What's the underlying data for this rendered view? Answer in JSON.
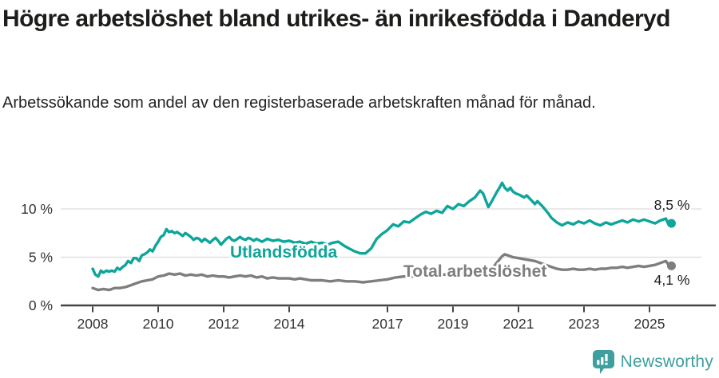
{
  "header": {
    "title": "Högre arbetslöshet bland utrikes- än inrikesfödda i Danderyd",
    "subtitle": "Arbetssökande som andel av den registerbaserade arbetskraften månad för månad."
  },
  "branding": {
    "logo_text": "Newsworthy",
    "color": "#3d9f9e"
  },
  "colors": {
    "foreign_born_line": "#0ea59b",
    "total_line": "#7e7e7e",
    "gridline": "#dcdcdc",
    "axis": "#454545",
    "axis_text": "#333333",
    "end_label_text": "#1d1d1d"
  },
  "chart_data": {
    "type": "line",
    "title": "Högre arbetslöshet bland utrikes- än inrikesfödda i Danderyd",
    "subtitle": "Arbetssökande som andel av den registerbaserade arbetskraften månad för månad.",
    "unit": "%",
    "grid": "horizontal",
    "legend_position": "inline-labels",
    "xlim": [
      2007.0,
      2026.6
    ],
    "ylim": [
      0,
      13.8
    ],
    "x_ticks": [
      2008,
      2010,
      2012,
      2014,
      2017,
      2019,
      2021,
      2023,
      2025
    ],
    "y_ticks": [
      {
        "value": 0,
        "label": "0 %"
      },
      {
        "value": 5,
        "label": "5 %"
      },
      {
        "value": 10,
        "label": "10 %"
      }
    ],
    "series": [
      {
        "name": "Utlandsfödda",
        "color": "#0ea59b",
        "end_label": "8,5 %",
        "end_value": 8.5,
        "points": [
          [
            2008.0,
            3.8
          ],
          [
            2008.08,
            3.2
          ],
          [
            2008.17,
            3.0
          ],
          [
            2008.25,
            3.6
          ],
          [
            2008.33,
            3.4
          ],
          [
            2008.42,
            3.6
          ],
          [
            2008.5,
            3.5
          ],
          [
            2008.58,
            3.6
          ],
          [
            2008.67,
            3.5
          ],
          [
            2008.75,
            3.9
          ],
          [
            2008.83,
            3.7
          ],
          [
            2008.92,
            4.0
          ],
          [
            2009.0,
            4.2
          ],
          [
            2009.08,
            4.6
          ],
          [
            2009.17,
            4.4
          ],
          [
            2009.25,
            4.9
          ],
          [
            2009.33,
            4.9
          ],
          [
            2009.42,
            4.6
          ],
          [
            2009.5,
            5.2
          ],
          [
            2009.58,
            5.3
          ],
          [
            2009.67,
            5.5
          ],
          [
            2009.75,
            5.8
          ],
          [
            2009.83,
            5.6
          ],
          [
            2009.92,
            6.2
          ],
          [
            2010.0,
            6.6
          ],
          [
            2010.08,
            7.1
          ],
          [
            2010.17,
            7.3
          ],
          [
            2010.25,
            7.9
          ],
          [
            2010.33,
            7.6
          ],
          [
            2010.42,
            7.7
          ],
          [
            2010.5,
            7.5
          ],
          [
            2010.58,
            7.6
          ],
          [
            2010.67,
            7.4
          ],
          [
            2010.75,
            7.2
          ],
          [
            2010.83,
            7.5
          ],
          [
            2010.92,
            7.3
          ],
          [
            2011.0,
            7.1
          ],
          [
            2011.08,
            6.8
          ],
          [
            2011.17,
            7.0
          ],
          [
            2011.25,
            6.9
          ],
          [
            2011.33,
            6.6
          ],
          [
            2011.42,
            6.9
          ],
          [
            2011.5,
            6.7
          ],
          [
            2011.58,
            6.5
          ],
          [
            2011.67,
            6.8
          ],
          [
            2011.75,
            7.0
          ],
          [
            2011.83,
            6.7
          ],
          [
            2011.92,
            6.3
          ],
          [
            2012.0,
            6.6
          ],
          [
            2012.08,
            6.9
          ],
          [
            2012.17,
            7.1
          ],
          [
            2012.25,
            6.8
          ],
          [
            2012.33,
            6.7
          ],
          [
            2012.42,
            6.9
          ],
          [
            2012.5,
            7.1
          ],
          [
            2012.58,
            6.9
          ],
          [
            2012.67,
            6.8
          ],
          [
            2012.75,
            7.0
          ],
          [
            2012.83,
            6.9
          ],
          [
            2012.92,
            6.7
          ],
          [
            2013.0,
            6.9
          ],
          [
            2013.17,
            6.6
          ],
          [
            2013.33,
            6.9
          ],
          [
            2013.5,
            6.7
          ],
          [
            2013.67,
            6.8
          ],
          [
            2013.83,
            6.6
          ],
          [
            2014.0,
            6.7
          ],
          [
            2014.17,
            6.5
          ],
          [
            2014.33,
            6.6
          ],
          [
            2014.5,
            6.4
          ],
          [
            2014.67,
            6.6
          ],
          [
            2014.83,
            6.4
          ],
          [
            2015.0,
            6.5
          ],
          [
            2015.17,
            6.3
          ],
          [
            2015.33,
            6.5
          ],
          [
            2015.5,
            6.6
          ],
          [
            2015.67,
            6.2
          ],
          [
            2015.83,
            5.9
          ],
          [
            2016.0,
            5.6
          ],
          [
            2016.17,
            5.4
          ],
          [
            2016.33,
            5.4
          ],
          [
            2016.5,
            5.9
          ],
          [
            2016.67,
            6.9
          ],
          [
            2016.83,
            7.4
          ],
          [
            2017.0,
            7.8
          ],
          [
            2017.17,
            8.4
          ],
          [
            2017.33,
            8.2
          ],
          [
            2017.5,
            8.7
          ],
          [
            2017.67,
            8.6
          ],
          [
            2017.83,
            9.0
          ],
          [
            2018.0,
            9.4
          ],
          [
            2018.17,
            9.7
          ],
          [
            2018.33,
            9.5
          ],
          [
            2018.5,
            9.8
          ],
          [
            2018.67,
            9.6
          ],
          [
            2018.83,
            10.3
          ],
          [
            2019.0,
            10.0
          ],
          [
            2019.17,
            10.5
          ],
          [
            2019.33,
            10.3
          ],
          [
            2019.5,
            10.8
          ],
          [
            2019.67,
            11.2
          ],
          [
            2019.83,
            11.9
          ],
          [
            2019.92,
            11.6
          ],
          [
            2020.0,
            10.9
          ],
          [
            2020.08,
            10.2
          ],
          [
            2020.17,
            10.7
          ],
          [
            2020.33,
            11.7
          ],
          [
            2020.42,
            12.2
          ],
          [
            2020.5,
            12.7
          ],
          [
            2020.58,
            12.2
          ],
          [
            2020.67,
            11.9
          ],
          [
            2020.75,
            12.2
          ],
          [
            2020.83,
            11.8
          ],
          [
            2020.92,
            11.6
          ],
          [
            2021.0,
            11.5
          ],
          [
            2021.17,
            11.2
          ],
          [
            2021.25,
            11.4
          ],
          [
            2021.42,
            10.8
          ],
          [
            2021.5,
            10.5
          ],
          [
            2021.58,
            10.8
          ],
          [
            2021.75,
            10.2
          ],
          [
            2021.92,
            9.5
          ],
          [
            2022.0,
            9.1
          ],
          [
            2022.17,
            8.6
          ],
          [
            2022.33,
            8.3
          ],
          [
            2022.5,
            8.6
          ],
          [
            2022.67,
            8.4
          ],
          [
            2022.83,
            8.7
          ],
          [
            2023.0,
            8.5
          ],
          [
            2023.17,
            8.8
          ],
          [
            2023.33,
            8.5
          ],
          [
            2023.5,
            8.3
          ],
          [
            2023.67,
            8.6
          ],
          [
            2023.83,
            8.4
          ],
          [
            2024.0,
            8.6
          ],
          [
            2024.17,
            8.8
          ],
          [
            2024.33,
            8.6
          ],
          [
            2024.5,
            8.9
          ],
          [
            2024.67,
            8.7
          ],
          [
            2024.83,
            8.9
          ],
          [
            2025.0,
            8.7
          ],
          [
            2025.17,
            8.5
          ],
          [
            2025.33,
            8.8
          ],
          [
            2025.5,
            9.0
          ],
          [
            2025.58,
            8.4
          ],
          [
            2025.67,
            8.5
          ]
        ]
      },
      {
        "name": "Total arbetslöshet",
        "color": "#7e7e7e",
        "end_label": "4,1 %",
        "end_value": 4.1,
        "points": [
          [
            2008.0,
            1.8
          ],
          [
            2008.17,
            1.6
          ],
          [
            2008.33,
            1.7
          ],
          [
            2008.5,
            1.6
          ],
          [
            2008.67,
            1.8
          ],
          [
            2008.83,
            1.8
          ],
          [
            2009.0,
            1.9
          ],
          [
            2009.17,
            2.1
          ],
          [
            2009.33,
            2.3
          ],
          [
            2009.5,
            2.5
          ],
          [
            2009.67,
            2.6
          ],
          [
            2009.83,
            2.7
          ],
          [
            2010.0,
            3.0
          ],
          [
            2010.17,
            3.1
          ],
          [
            2010.33,
            3.3
          ],
          [
            2010.5,
            3.2
          ],
          [
            2010.67,
            3.3
          ],
          [
            2010.83,
            3.1
          ],
          [
            2011.0,
            3.2
          ],
          [
            2011.17,
            3.1
          ],
          [
            2011.33,
            3.2
          ],
          [
            2011.5,
            3.0
          ],
          [
            2011.67,
            3.1
          ],
          [
            2011.83,
            3.0
          ],
          [
            2012.0,
            3.0
          ],
          [
            2012.17,
            2.9
          ],
          [
            2012.33,
            3.0
          ],
          [
            2012.5,
            3.1
          ],
          [
            2012.67,
            3.0
          ],
          [
            2012.83,
            3.1
          ],
          [
            2013.0,
            2.9
          ],
          [
            2013.17,
            3.0
          ],
          [
            2013.33,
            2.8
          ],
          [
            2013.5,
            2.9
          ],
          [
            2013.67,
            2.8
          ],
          [
            2013.83,
            2.8
          ],
          [
            2014.0,
            2.8
          ],
          [
            2014.17,
            2.7
          ],
          [
            2014.33,
            2.8
          ],
          [
            2014.5,
            2.7
          ],
          [
            2014.67,
            2.6
          ],
          [
            2014.83,
            2.6
          ],
          [
            2015.0,
            2.6
          ],
          [
            2015.25,
            2.5
          ],
          [
            2015.5,
            2.6
          ],
          [
            2015.75,
            2.5
          ],
          [
            2016.0,
            2.5
          ],
          [
            2016.25,
            2.4
          ],
          [
            2016.5,
            2.5
          ],
          [
            2016.75,
            2.6
          ],
          [
            2017.0,
            2.7
          ],
          [
            2017.25,
            2.9
          ],
          [
            2017.5,
            3.0
          ],
          [
            2017.75,
            3.0
          ],
          [
            2018.0,
            3.1
          ],
          [
            2018.25,
            3.1
          ],
          [
            2018.5,
            3.2
          ],
          [
            2018.75,
            3.2
          ],
          [
            2019.0,
            3.2
          ],
          [
            2019.25,
            3.3
          ],
          [
            2019.5,
            3.3
          ],
          [
            2019.75,
            3.4
          ],
          [
            2020.0,
            3.5
          ],
          [
            2020.17,
            3.7
          ],
          [
            2020.33,
            4.4
          ],
          [
            2020.5,
            5.1
          ],
          [
            2020.58,
            5.3
          ],
          [
            2020.67,
            5.2
          ],
          [
            2020.83,
            5.0
          ],
          [
            2021.0,
            4.9
          ],
          [
            2021.17,
            4.8
          ],
          [
            2021.33,
            4.7
          ],
          [
            2021.5,
            4.6
          ],
          [
            2021.67,
            4.4
          ],
          [
            2021.83,
            4.2
          ],
          [
            2022.0,
            4.0
          ],
          [
            2022.17,
            3.8
          ],
          [
            2022.33,
            3.7
          ],
          [
            2022.5,
            3.7
          ],
          [
            2022.67,
            3.8
          ],
          [
            2022.83,
            3.7
          ],
          [
            2023.0,
            3.7
          ],
          [
            2023.17,
            3.8
          ],
          [
            2023.33,
            3.7
          ],
          [
            2023.5,
            3.8
          ],
          [
            2023.67,
            3.8
          ],
          [
            2023.83,
            3.9
          ],
          [
            2024.0,
            3.9
          ],
          [
            2024.17,
            4.0
          ],
          [
            2024.33,
            3.9
          ],
          [
            2024.5,
            4.0
          ],
          [
            2024.67,
            4.1
          ],
          [
            2024.83,
            4.0
          ],
          [
            2025.0,
            4.1
          ],
          [
            2025.17,
            4.2
          ],
          [
            2025.33,
            4.4
          ],
          [
            2025.5,
            4.6
          ],
          [
            2025.58,
            4.2
          ],
          [
            2025.67,
            4.1
          ]
        ]
      }
    ]
  }
}
